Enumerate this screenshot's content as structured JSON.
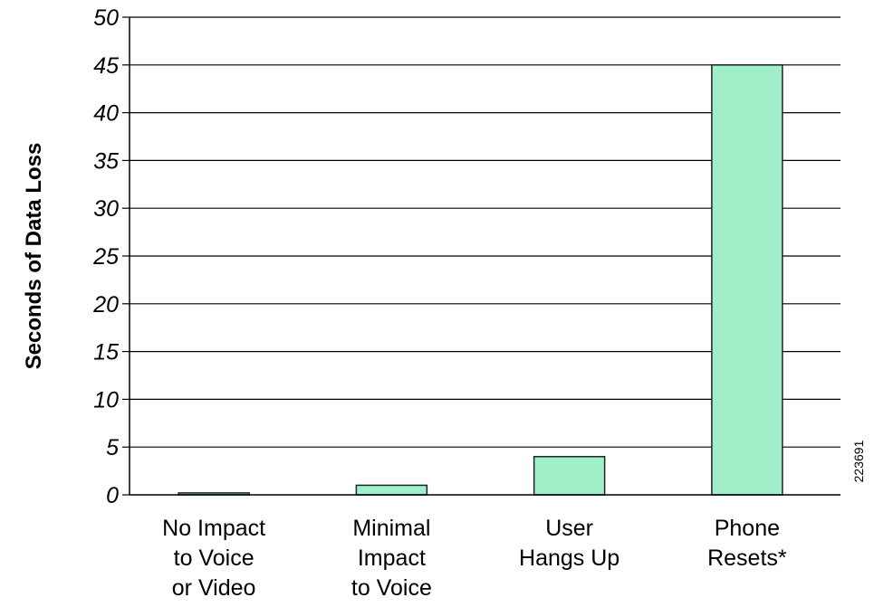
{
  "chart_data": {
    "type": "bar",
    "categories": [
      [
        "No Impact",
        "to Voice",
        "or Video"
      ],
      [
        "Minimal",
        "Impact",
        "to Voice"
      ],
      [
        "User",
        "Hangs Up"
      ],
      [
        "Phone",
        "Resets*"
      ]
    ],
    "values": [
      0.2,
      1,
      4,
      45
    ],
    "ylabel": "Seconds of Data Loss",
    "ylim": [
      0,
      50
    ],
    "yticks": [
      0,
      5,
      10,
      15,
      20,
      25,
      30,
      35,
      40,
      45,
      50
    ],
    "grid": true,
    "legend": "none",
    "figure_id": "223691",
    "colors": {
      "bar_fill": "#9ff0c8",
      "bar_stroke": "#222222",
      "grid": "#000000"
    }
  }
}
